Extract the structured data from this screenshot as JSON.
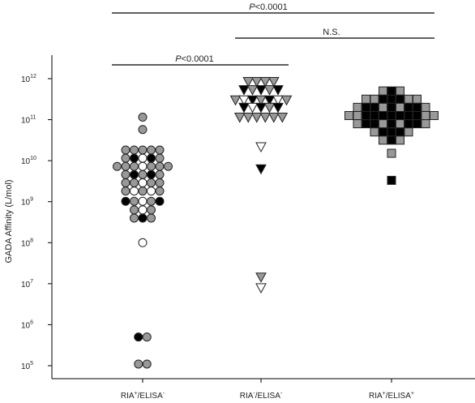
{
  "chart_data": {
    "type": "scatter",
    "ylabel": "GADA Affinity (L/mol)",
    "y_scale": "log",
    "ylim": [
      100000.0,
      1000000000000.0
    ],
    "y_ticks": [
      {
        "base": "10",
        "exp": "5"
      },
      {
        "base": "10",
        "exp": "6"
      },
      {
        "base": "10",
        "exp": "7"
      },
      {
        "base": "10",
        "exp": "8"
      },
      {
        "base": "10",
        "exp": "9"
      },
      {
        "base": "10",
        "exp": "10"
      },
      {
        "base": "10",
        "exp": "11"
      },
      {
        "base": "10",
        "exp": "12"
      }
    ],
    "categories": [
      {
        "main": "RIA",
        "sup1": "+",
        "mid": "/ELISA",
        "sup2": "-"
      },
      {
        "main": "RIA",
        "sup1": "-",
        "mid": "/ELISA",
        "sup2": "-"
      },
      {
        "main": "RIA",
        "sup1": "+",
        "mid": "/ELISA",
        "sup2": "+"
      }
    ],
    "colors": {
      "gray": "#999999",
      "black": "#000000",
      "white": "#ffffff",
      "edge": "#222222"
    },
    "series": [
      {
        "group": 0,
        "marker": "circle",
        "points": [
          {
            "exp": 11.06,
            "dx": [
              0
            ],
            "fills": [
              "gray"
            ]
          },
          {
            "exp": 10.76,
            "dx": [
              0
            ],
            "fills": [
              "gray"
            ]
          },
          {
            "exp": 10.26,
            "dx": [
              -2,
              -1,
              0,
              1,
              2
            ],
            "fills": [
              "gray",
              "gray",
              "gray",
              "gray",
              "gray"
            ]
          },
          {
            "exp": 10.06,
            "dx": [
              -2,
              -1,
              0,
              1,
              2
            ],
            "fills": [
              "gray",
              "black",
              "white",
              "black",
              "gray"
            ]
          },
          {
            "exp": 9.86,
            "dx": [
              -3,
              -2,
              -1,
              0,
              1,
              2,
              3
            ],
            "fills": [
              "gray",
              "gray",
              "gray",
              "white",
              "gray",
              "gray",
              "gray"
            ]
          },
          {
            "exp": 9.66,
            "dx": [
              -2,
              -1,
              0,
              1,
              2
            ],
            "fills": [
              "gray",
              "black",
              "gray",
              "black",
              "gray"
            ]
          },
          {
            "exp": 9.46,
            "dx": [
              -2,
              -1,
              0,
              1,
              2
            ],
            "fills": [
              "gray",
              "gray",
              "white",
              "gray",
              "gray"
            ]
          },
          {
            "exp": 9.26,
            "dx": [
              -2,
              -1,
              0,
              1,
              2
            ],
            "fills": [
              "gray",
              "white",
              "gray",
              "white",
              "gray"
            ]
          },
          {
            "exp": 9.01,
            "dx": [
              -2,
              -1,
              0,
              1,
              2
            ],
            "fills": [
              "black",
              "gray",
              "white",
              "gray",
              "black"
            ]
          },
          {
            "exp": 8.8,
            "dx": [
              -1,
              0,
              1
            ],
            "fills": [
              "gray",
              "white",
              "gray"
            ]
          },
          {
            "exp": 8.6,
            "dx": [
              -1,
              0,
              1
            ],
            "fills": [
              "gray",
              "black",
              "gray"
            ]
          },
          {
            "exp": 8.0,
            "dx": [
              0
            ],
            "fills": [
              "white"
            ]
          },
          {
            "exp": 5.7,
            "dx": [
              -0.5,
              0.5
            ],
            "fills": [
              "black",
              "gray"
            ]
          },
          {
            "exp": 5.04,
            "dx": [
              -0.5,
              0.5
            ],
            "fills": [
              "gray",
              "gray"
            ]
          }
        ]
      },
      {
        "group": 1,
        "marker": "triangle-down",
        "points": [
          {
            "exp": 11.93,
            "dx": [
              -1.5,
              -0.5,
              0.5,
              1.5
            ],
            "fills": [
              "gray",
              "gray",
              "gray",
              "gray"
            ]
          },
          {
            "exp": 11.73,
            "dx": [
              -2,
              -1,
              0,
              1,
              2
            ],
            "fills": [
              "black",
              "gray",
              "black",
              "gray",
              "black"
            ]
          },
          {
            "exp": 11.48,
            "dx": [
              -3,
              -2,
              -1,
              0,
              1,
              2,
              3
            ],
            "fills": [
              "gray",
              "white",
              "black",
              "gray",
              "black",
              "white",
              "gray"
            ]
          },
          {
            "exp": 11.3,
            "dx": [
              -2,
              -1,
              0,
              1,
              2
            ],
            "fills": [
              "black",
              "white",
              "black",
              "gray",
              "black"
            ]
          },
          {
            "exp": 11.06,
            "dx": [
              -2.5,
              -1.5,
              -0.5,
              0.5,
              1.5,
              2.5
            ],
            "fills": [
              "gray",
              "gray",
              "gray",
              "gray",
              "gray",
              "gray"
            ]
          },
          {
            "exp": 10.34,
            "dx": [
              0
            ],
            "fills": [
              "white"
            ]
          },
          {
            "exp": 9.8,
            "dx": [
              0
            ],
            "fills": [
              "black"
            ]
          },
          {
            "exp": 7.16,
            "dx": [
              0
            ],
            "fills": [
              "gray"
            ]
          },
          {
            "exp": 6.9,
            "dx": [
              0
            ],
            "fills": [
              "white"
            ]
          }
        ]
      },
      {
        "group": 2,
        "marker": "square",
        "points": [
          {
            "exp": 11.7,
            "dx": [
              -1,
              0,
              1
            ],
            "fills": [
              "gray",
              "black",
              "gray"
            ]
          },
          {
            "exp": 11.5,
            "dx": [
              -3,
              -2,
              -1,
              0,
              1,
              2,
              3
            ],
            "fills": [
              "gray",
              "gray",
              "black",
              "black",
              "black",
              "gray",
              "gray"
            ]
          },
          {
            "exp": 11.3,
            "dx": [
              -4,
              -3,
              -2,
              -1,
              0,
              1,
              2,
              3,
              4
            ],
            "fills": [
              "gray",
              "black",
              "black",
              "gray",
              "black",
              "gray",
              "black",
              "black",
              "gray"
            ]
          },
          {
            "exp": 11.1,
            "dx": [
              -5,
              -4,
              -3,
              -2,
              -1,
              0,
              1,
              2,
              3,
              4,
              5
            ],
            "fills": [
              "gray",
              "gray",
              "black",
              "black",
              "black",
              "black",
              "black",
              "black",
              "black",
              "gray",
              "gray"
            ]
          },
          {
            "exp": 10.9,
            "dx": [
              -4,
              -3,
              -2,
              -1,
              0,
              1,
              2,
              3,
              4
            ],
            "fills": [
              "gray",
              "black",
              "black",
              "gray",
              "black",
              "gray",
              "black",
              "black",
              "gray"
            ]
          },
          {
            "exp": 10.7,
            "dx": [
              -2,
              -1,
              0,
              1,
              2
            ],
            "fills": [
              "gray",
              "black",
              "black",
              "black",
              "gray"
            ]
          },
          {
            "exp": 10.5,
            "dx": [
              -1,
              0,
              1
            ],
            "fills": [
              "gray",
              "black",
              "gray"
            ]
          },
          {
            "exp": 10.18,
            "dx": [
              0
            ],
            "fills": [
              "gray"
            ]
          },
          {
            "exp": 9.52,
            "dx": [
              0
            ],
            "fills": [
              "black"
            ]
          }
        ]
      }
    ],
    "brackets": [
      {
        "from": 0,
        "to": 2,
        "label": "P<0.0001"
      },
      {
        "from": 1,
        "to": 2,
        "label": "N.S."
      },
      {
        "from": 0,
        "to": 1,
        "label": "P<0.0001"
      }
    ]
  }
}
